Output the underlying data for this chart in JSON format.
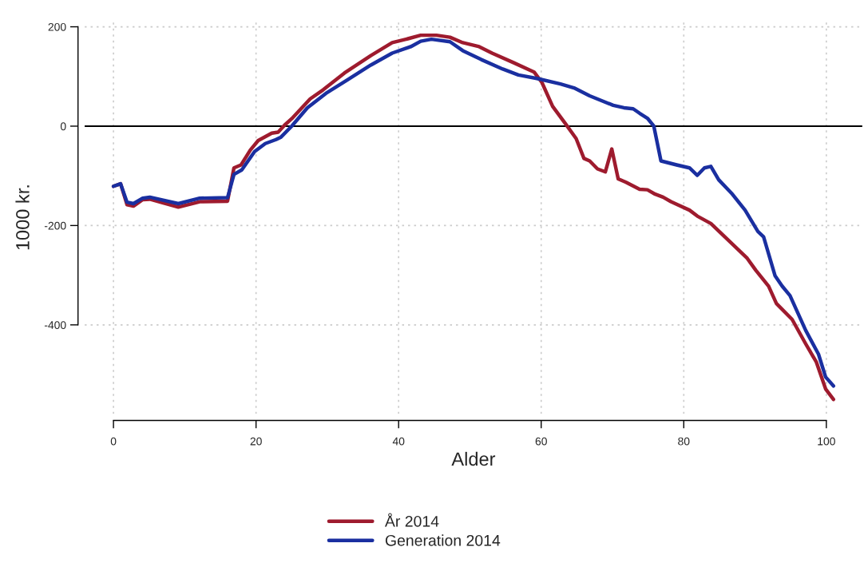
{
  "chart_data": {
    "type": "line",
    "xlabel": "Alder",
    "ylabel": "1000 kr.",
    "xlim": [
      -4.04,
      105.04
    ],
    "ylim": [
      -579,
      212
    ],
    "xticks": [
      0,
      20,
      40,
      60,
      80,
      100
    ],
    "yticks": [
      -400,
      -200,
      0,
      200
    ],
    "grid": true,
    "legend": "bottom",
    "line_style": "solid",
    "marker": "none",
    "ref_lines": [
      {
        "axis": "y",
        "value": 0,
        "color": "#000000"
      }
    ],
    "series": [
      {
        "name": "År 2014",
        "color": "#9e1b2e",
        "x": [
          0,
          1,
          1.9,
          2.8,
          4.1,
          5.1,
          9.1,
          12.1,
          16,
          16.9,
          17.9,
          19.2,
          20.3,
          22.2,
          23.1,
          24,
          25,
          27.6,
          29.4,
          32.4,
          36.1,
          39.1,
          41.3,
          43.1,
          45.3,
          47.2,
          49,
          51.3,
          53.1,
          56.1,
          59,
          60.1,
          61.6,
          63.4,
          64.9,
          66,
          66.8,
          67.9,
          69,
          69.9,
          70.8,
          71.9,
          73.8,
          74.9,
          76,
          77.1,
          78.2,
          80.8,
          81.9,
          83.8,
          86,
          88.9,
          90.1,
          91.9,
          93,
          95.2,
          97.1,
          98.6,
          99.9,
          101
        ],
        "values": [
          -121,
          -116,
          -158,
          -161,
          -148,
          -147,
          -163,
          -152,
          -151,
          -84,
          -78,
          -48,
          -29,
          -14,
          -12,
          2,
          15,
          55,
          73,
          107,
          142,
          168,
          176,
          183,
          183,
          179,
          168,
          160,
          147,
          128,
          109,
          88,
          40,
          5,
          -25,
          -65,
          -70,
          -86,
          -92,
          -46,
          -106,
          -113,
          -127,
          -128,
          -137,
          -143,
          -152,
          -169,
          -181,
          -196,
          -226,
          -266,
          -290,
          -322,
          -357,
          -389,
          -438,
          -475,
          -529,
          -550
        ]
      },
      {
        "name": "Generation 2014",
        "color": "#1a2fa0",
        "x": [
          0,
          1,
          1.9,
          2.8,
          4.1,
          5.1,
          9.1,
          12.1,
          16,
          16.9,
          18,
          19.8,
          21.3,
          22.8,
          23.5,
          25,
          27.2,
          29.8,
          32.8,
          36.1,
          39.1,
          41.7,
          43.1,
          44.6,
          47.2,
          49,
          51.6,
          54.6,
          56.8,
          59.4,
          62.7,
          64.6,
          66.8,
          70.1,
          71.6,
          72.9,
          73.8,
          74.9,
          75.8,
          76.8,
          79,
          80.8,
          81.9,
          82.9,
          83.8,
          84.9,
          86.7,
          88.6,
          90.4,
          91.2,
          92.8,
          93.8,
          94.9,
          97.1,
          98.9,
          99.9,
          101
        ],
        "values": [
          -121,
          -116,
          -153,
          -156,
          -145,
          -143,
          -156,
          -145,
          -144,
          -97,
          -88,
          -51,
          -35,
          -27,
          -22,
          0,
          37,
          66,
          93,
          123,
          147,
          160,
          171,
          175,
          170,
          152,
          134,
          115,
          103,
          96,
          85,
          77,
          61,
          42,
          37,
          35,
          26,
          16,
          0,
          -70,
          -78,
          -84,
          -99,
          -84,
          -81,
          -108,
          -135,
          -169,
          -212,
          -223,
          -301,
          -322,
          -341,
          -411,
          -459,
          -505,
          -523
        ]
      }
    ]
  }
}
